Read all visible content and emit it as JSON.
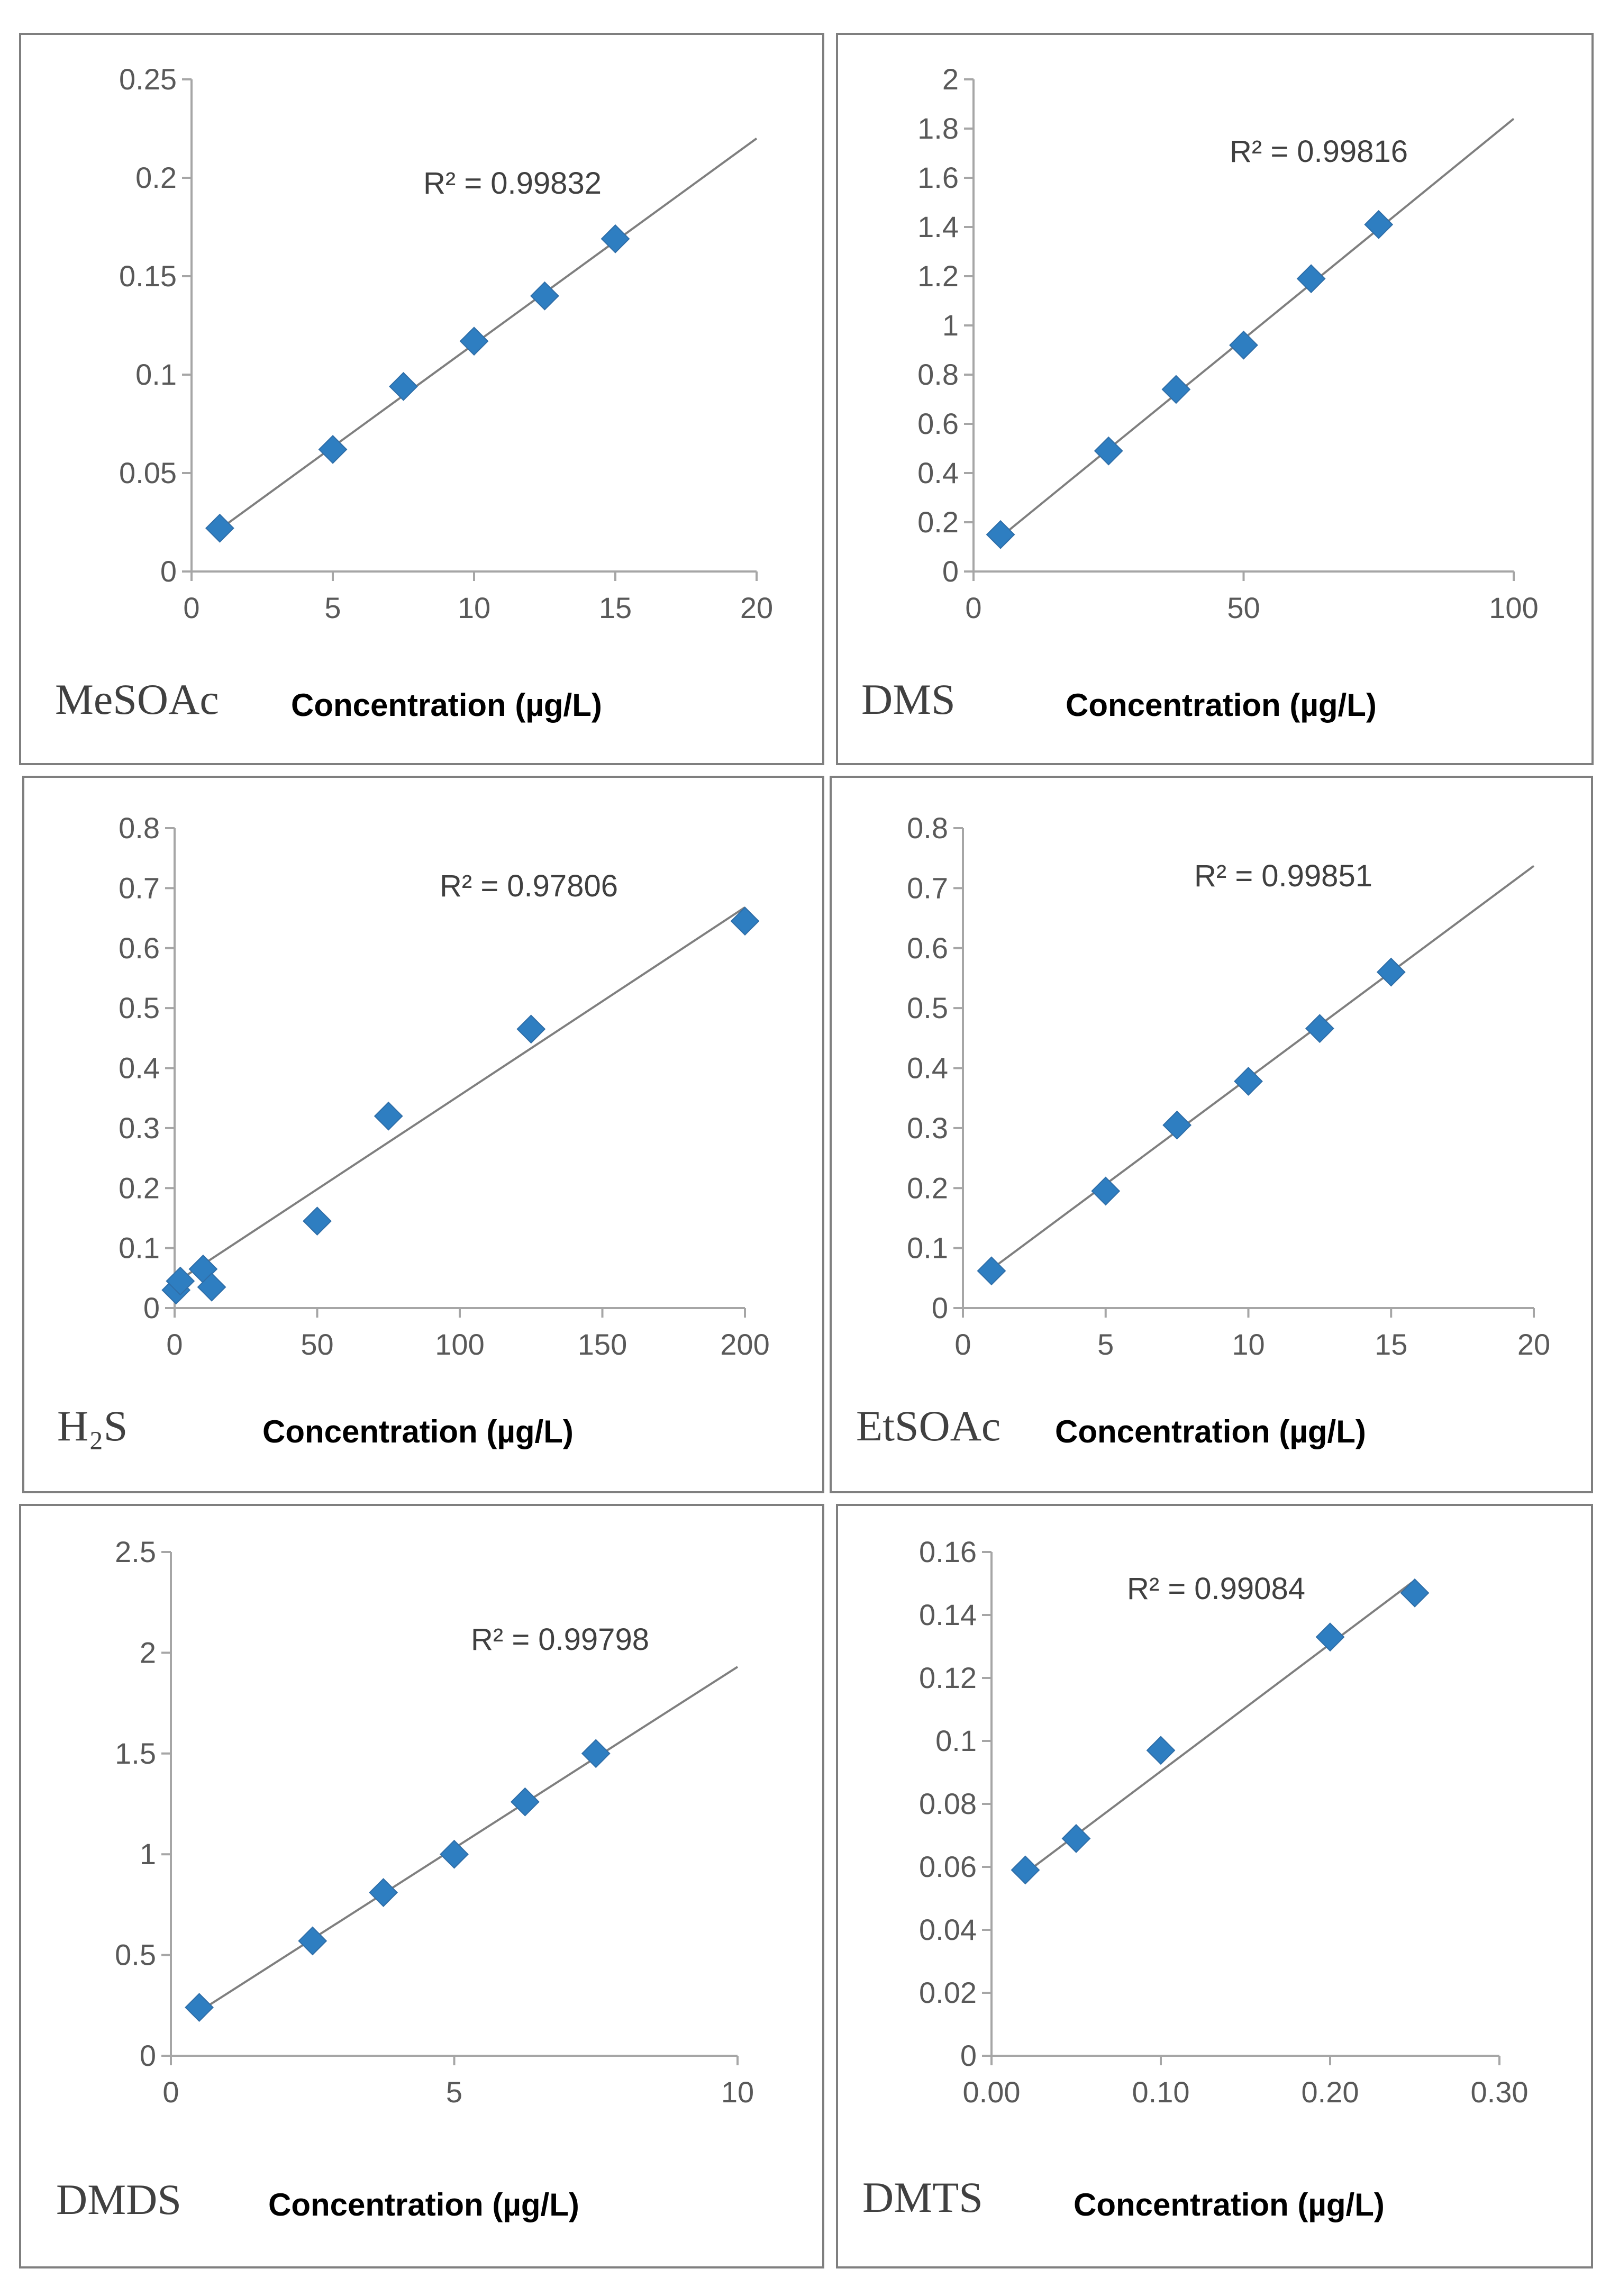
{
  "accent": "#2e7ec1",
  "panels": [
    {
      "id": "mesoac",
      "compound": "MeSOAc",
      "r2_text": "R² = 0.99832",
      "chart_data": {
        "type": "scatter",
        "title": "MeSOAc",
        "xlabel": "Concentration (µg/L)",
        "ylabel": "",
        "xlim": [
          0,
          20
        ],
        "ylim": [
          0,
          0.25
        ],
        "x_ticks": [
          0,
          5,
          10,
          15,
          20
        ],
        "y_ticks": [
          0,
          0.05,
          0.1,
          0.15,
          0.2,
          0.25
        ],
        "x_tick_labels": [
          "0",
          "5",
          "10",
          "15",
          "20"
        ],
        "y_tick_labels": [
          "0",
          "0.05",
          "0.1",
          "0.15",
          "0.2",
          "0.25"
        ],
        "points": [
          [
            1,
            0.022
          ],
          [
            5,
            0.062
          ],
          [
            7.5,
            0.094
          ],
          [
            10,
            0.117
          ],
          [
            12.5,
            0.14
          ],
          [
            15,
            0.169
          ]
        ],
        "trendline": {
          "x": [
            1,
            20
          ],
          "y": [
            0.0215,
            0.22
          ]
        },
        "r_squared": 0.99832
      }
    },
    {
      "id": "dms",
      "compound": "DMS",
      "r2_text": "R² = 0.99816",
      "chart_data": {
        "type": "scatter",
        "title": "DMS",
        "xlabel": "Concentration (µg/L)",
        "ylabel": "",
        "xlim": [
          0,
          100
        ],
        "ylim": [
          0,
          2
        ],
        "x_ticks": [
          0,
          50,
          100
        ],
        "y_ticks": [
          0,
          0.2,
          0.4,
          0.6,
          0.8,
          1,
          1.2,
          1.4,
          1.6,
          1.8,
          2
        ],
        "x_tick_labels": [
          "0",
          "50",
          "100"
        ],
        "y_tick_labels": [
          "0",
          "0.2",
          "0.4",
          "0.6",
          "0.8",
          "1",
          "1.2",
          "1.4",
          "1.6",
          "1.8",
          "2"
        ],
        "points": [
          [
            5,
            0.15
          ],
          [
            25,
            0.49
          ],
          [
            37.5,
            0.74
          ],
          [
            50,
            0.92
          ],
          [
            62.5,
            1.19
          ],
          [
            75,
            1.41
          ]
        ],
        "trendline": {
          "x": [
            5,
            100
          ],
          "y": [
            0.14,
            1.84
          ]
        },
        "r_squared": 0.99816
      }
    },
    {
      "id": "h2s",
      "compound": "H₂S",
      "r2_text": "R² = 0.97806",
      "chart_data": {
        "type": "scatter",
        "title": "H2S",
        "xlabel": "Concentration (µg/L)",
        "ylabel": "",
        "xlim": [
          0,
          200
        ],
        "ylim": [
          0,
          0.8
        ],
        "x_ticks": [
          0,
          50,
          100,
          150,
          200
        ],
        "y_ticks": [
          0,
          0.1,
          0.2,
          0.3,
          0.4,
          0.5,
          0.6,
          0.7,
          0.8
        ],
        "x_tick_labels": [
          "0",
          "50",
          "100",
          "150",
          "200"
        ],
        "y_tick_labels": [
          "0",
          "0.1",
          "0.2",
          "0.3",
          "0.4",
          "0.5",
          "0.6",
          "0.7",
          "0.8"
        ],
        "points": [
          [
            0.5,
            0.03
          ],
          [
            2,
            0.045
          ],
          [
            10,
            0.065
          ],
          [
            13,
            0.035
          ],
          [
            50,
            0.145
          ],
          [
            75,
            0.32
          ],
          [
            125,
            0.465
          ],
          [
            200,
            0.645
          ]
        ],
        "trendline": {
          "x": [
            0.5,
            200
          ],
          "y": [
            0.043,
            0.668
          ]
        },
        "r_squared": 0.97806
      }
    },
    {
      "id": "etsoac",
      "compound": "EtSOAc",
      "r2_text": "R² = 0.99851",
      "chart_data": {
        "type": "scatter",
        "title": "EtSOAc",
        "xlabel": "Concentration (µg/L)",
        "ylabel": "",
        "xlim": [
          0,
          20
        ],
        "ylim": [
          0,
          0.8
        ],
        "x_ticks": [
          0,
          5,
          10,
          15,
          20
        ],
        "y_ticks": [
          0,
          0.1,
          0.2,
          0.3,
          0.4,
          0.5,
          0.6,
          0.7,
          0.8
        ],
        "x_tick_labels": [
          "0",
          "5",
          "10",
          "15",
          "20"
        ],
        "y_tick_labels": [
          "0",
          "0.1",
          "0.2",
          "0.3",
          "0.4",
          "0.5",
          "0.6",
          "0.7",
          "0.8"
        ],
        "points": [
          [
            1,
            0.062
          ],
          [
            5,
            0.195
          ],
          [
            7.5,
            0.305
          ],
          [
            10,
            0.378
          ],
          [
            12.5,
            0.466
          ],
          [
            15,
            0.56
          ]
        ],
        "trendline": {
          "x": [
            1,
            20
          ],
          "y": [
            0.065,
            0.737
          ]
        },
        "r_squared": 0.99851
      }
    },
    {
      "id": "dmds",
      "compound": "DMDS",
      "r2_text": "R² = 0.99798",
      "chart_data": {
        "type": "scatter",
        "title": "DMDS",
        "xlabel": "Concentration (µg/L)",
        "ylabel": "",
        "xlim": [
          0,
          10
        ],
        "ylim": [
          0,
          2.5
        ],
        "x_ticks": [
          0,
          5,
          10
        ],
        "y_ticks": [
          0,
          0.5,
          1,
          1.5,
          2,
          2.5
        ],
        "x_tick_labels": [
          "0",
          "5",
          "10"
        ],
        "y_tick_labels": [
          "0",
          "0.5",
          "1",
          "1.5",
          "2",
          "2.5"
        ],
        "points": [
          [
            0.5,
            0.24
          ],
          [
            2.5,
            0.57
          ],
          [
            3.75,
            0.81
          ],
          [
            5,
            1.0
          ],
          [
            6.25,
            1.26
          ],
          [
            7.5,
            1.5
          ]
        ],
        "trendline": {
          "x": [
            0.5,
            10
          ],
          "y": [
            0.22,
            1.93
          ]
        },
        "r_squared": 0.99798
      }
    },
    {
      "id": "dmts",
      "compound": "DMTS",
      "r2_text": "R² = 0.99084",
      "chart_data": {
        "type": "scatter",
        "title": "DMTS",
        "xlabel": "Concentration (µg/L)",
        "ylabel": "",
        "xlim": [
          0,
          0.3
        ],
        "ylim": [
          0,
          0.16
        ],
        "x_ticks": [
          0,
          0.1,
          0.2,
          0.3
        ],
        "y_ticks": [
          0,
          0.02,
          0.04,
          0.06,
          0.08,
          0.1,
          0.12,
          0.14,
          0.16
        ],
        "x_tick_labels": [
          "0.00",
          "0.10",
          "0.20",
          "0.30"
        ],
        "y_tick_labels": [
          "0",
          "0.02",
          "0.04",
          "0.06",
          "0.08",
          "0.1",
          "0.12",
          "0.14",
          "0.16"
        ],
        "points": [
          [
            0.02,
            0.059
          ],
          [
            0.05,
            0.069
          ],
          [
            0.1,
            0.097
          ],
          [
            0.2,
            0.133
          ],
          [
            0.25,
            0.147
          ]
        ],
        "trendline": {
          "x": [
            0.02,
            0.25
          ],
          "y": [
            0.058,
            0.151
          ]
        },
        "r_squared": 0.99084
      }
    }
  ]
}
